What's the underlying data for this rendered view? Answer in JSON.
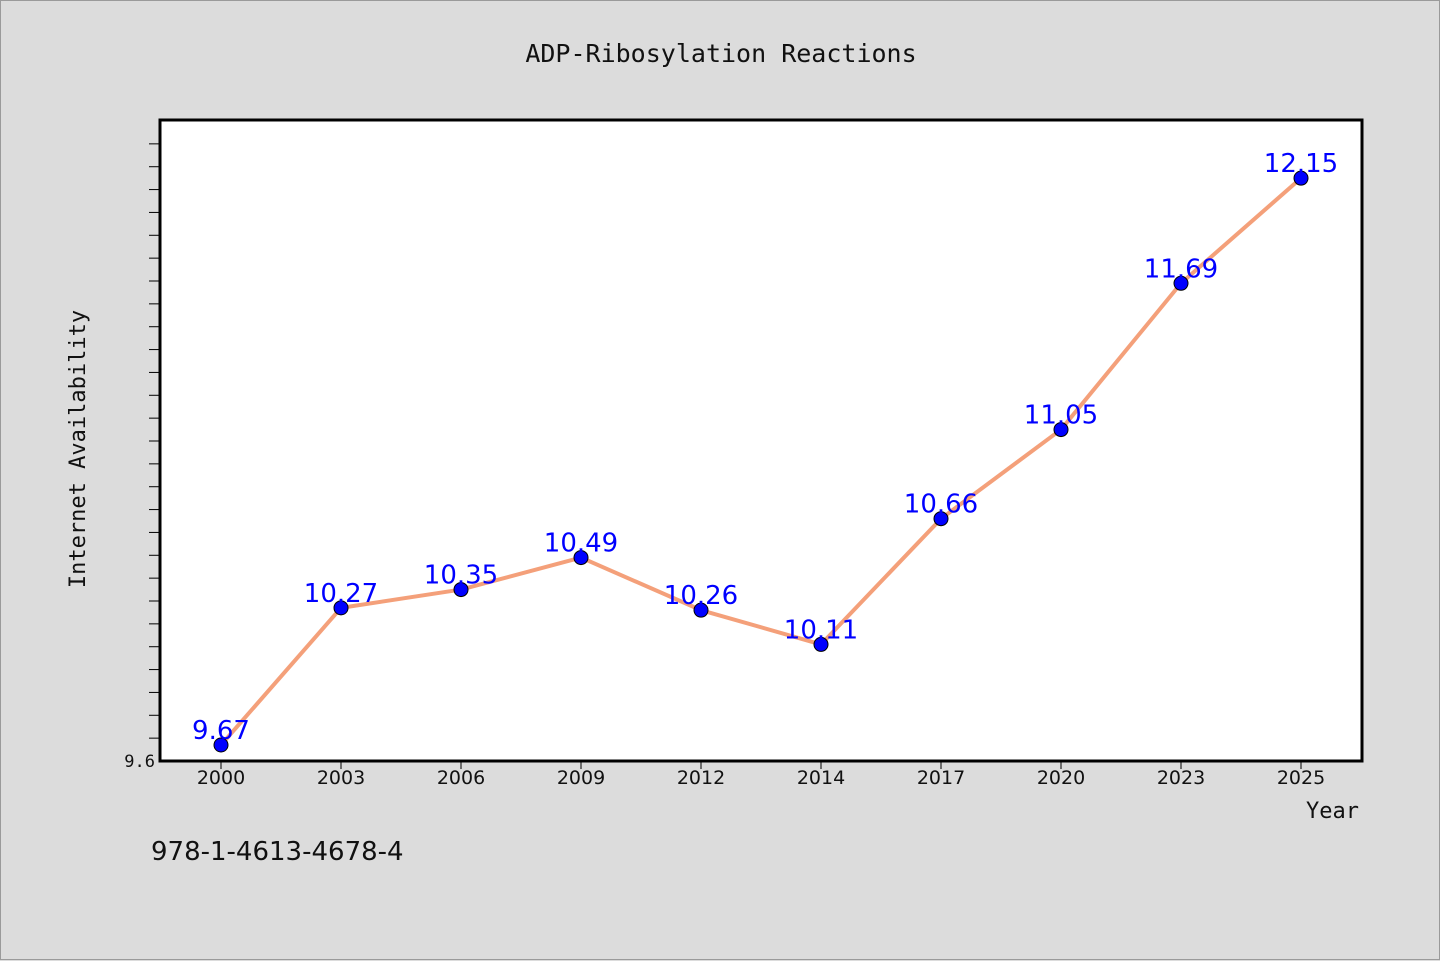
{
  "chart_data": {
    "type": "line",
    "title": "ADP-Ribosylation Reactions",
    "xlabel": "Year",
    "ylabel": "Internet Availability",
    "categories": [
      "2000",
      "2003",
      "2006",
      "2009",
      "2012",
      "2014",
      "2017",
      "2020",
      "2023",
      "2025"
    ],
    "values": [
      9.67,
      10.27,
      10.35,
      10.49,
      10.26,
      10.11,
      10.66,
      11.05,
      11.69,
      12.15
    ],
    "data_labels": [
      "9.67",
      "10.27",
      "10.35",
      "10.49",
      "10.26",
      "10.11",
      "10.66",
      "11.05",
      "11.69",
      "12.15"
    ],
    "ylim": [
      9.6,
      12.4
    ],
    "y_tick_labels": [
      "9.6"
    ],
    "grid": false,
    "line_color": "#f4a07a",
    "marker_color": "#0000ff",
    "label_color": "#0000ff"
  },
  "footer": {
    "code": "978-1-4613-4678-4"
  }
}
